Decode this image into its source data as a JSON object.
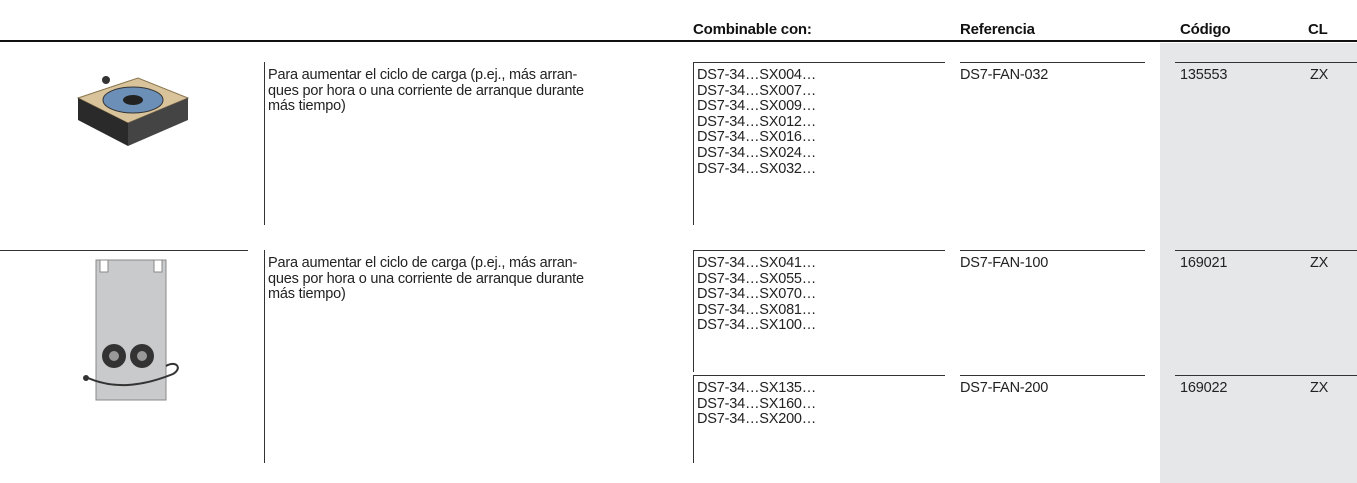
{
  "header": {
    "columns": [
      "Combinable con:",
      "Referencia",
      "Código",
      "CL"
    ]
  },
  "rows": [
    {
      "description": [
        "Para aumentar el ciclo de carga (p.ej., más arran-",
        "ques por hora o una corriente de arranque durante",
        "más tiempo)"
      ],
      "items": [
        {
          "combinable": [
            "DS7-34…SX004…",
            "DS7-34…SX007…",
            "DS7-34…SX009…",
            "DS7-34…SX012…",
            "DS7-34…SX016…",
            "DS7-34…SX024…",
            "DS7-34…SX032…"
          ],
          "reference": "DS7-FAN-032",
          "code": "135553",
          "cl": "ZX"
        }
      ]
    },
    {
      "description": [
        "Para aumentar el ciclo de carga (p.ej., más arran-",
        "ques por hora o una corriente de arranque durante",
        "más tiempo)"
      ],
      "items": [
        {
          "combinable": [
            "DS7-34…SX041…",
            "DS7-34…SX055…",
            "DS7-34…SX070…",
            "DS7-34…SX081…",
            "DS7-34…SX100…"
          ],
          "reference": "DS7-FAN-100",
          "code": "169021",
          "cl": "ZX"
        },
        {
          "combinable": [
            "DS7-34…SX135…",
            "DS7-34…SX160…",
            "DS7-34…SX200…"
          ],
          "reference": "DS7-FAN-200",
          "code": "169022",
          "cl": "ZX"
        }
      ]
    }
  ]
}
